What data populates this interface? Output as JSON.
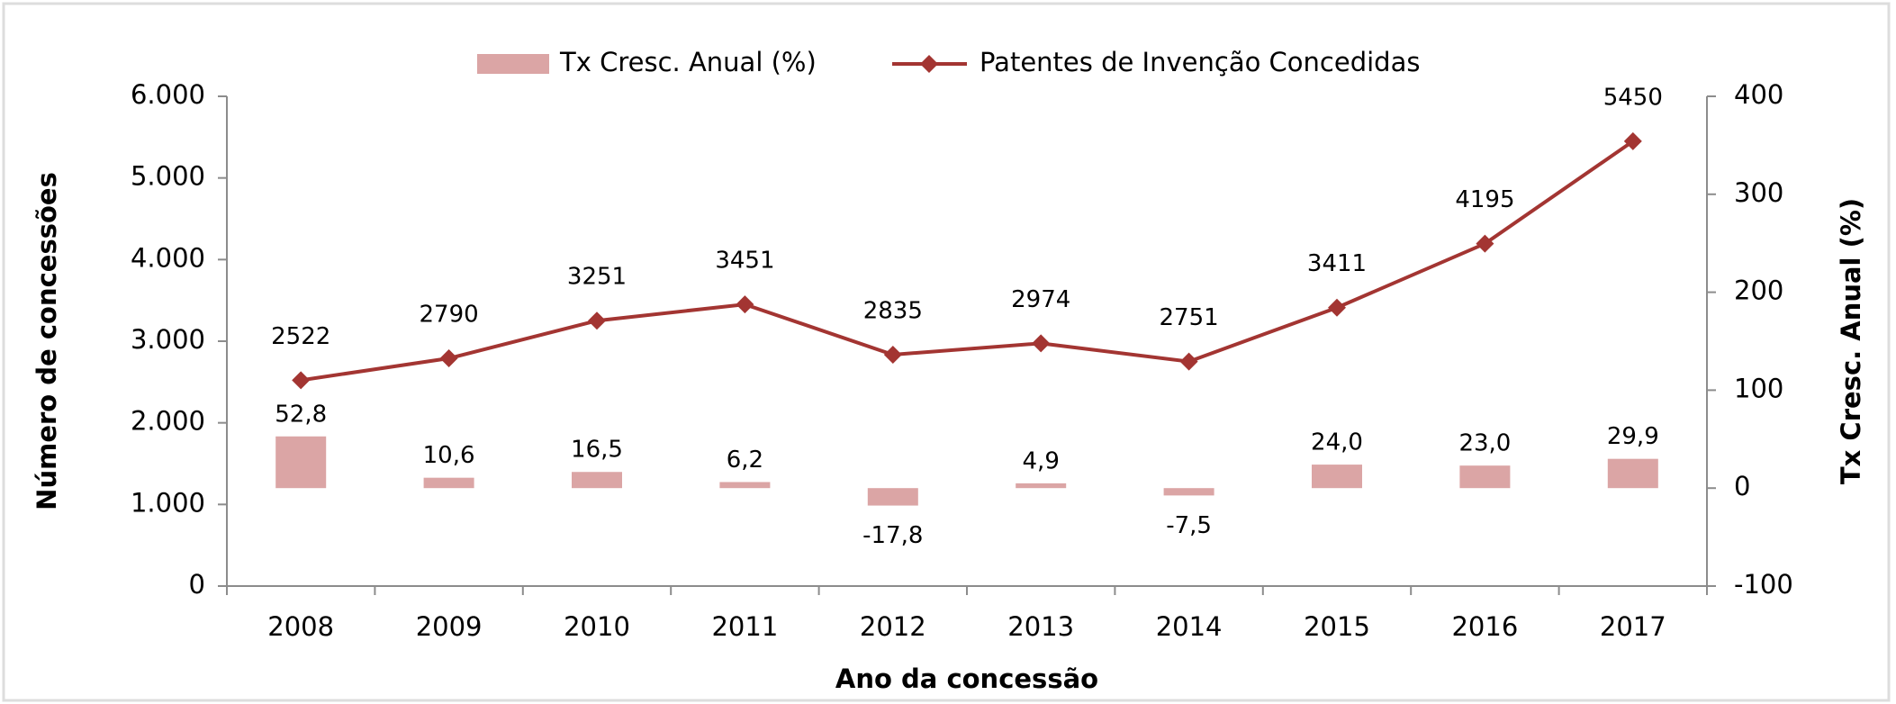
{
  "chart_data": {
    "type": "combo",
    "x_label": "Ano da concessão",
    "y_label": "Número de concessões",
    "y2_label": "Tx Cresc. Anual (%)",
    "categories": [
      "2008",
      "2009",
      "2010",
      "2011",
      "2012",
      "2013",
      "2014",
      "2015",
      "2016",
      "2017"
    ],
    "series": [
      {
        "name": "Tx Cresc. Anual (%)",
        "type": "bar",
        "axis": "y2",
        "color": "#dba5a5",
        "values": [
          52.8,
          10.6,
          16.5,
          6.2,
          -17.8,
          4.9,
          -7.5,
          24.0,
          23.0,
          29.9
        ],
        "value_labels": [
          "52,8",
          "10,6",
          "16,5",
          "6,2",
          "-17,8",
          "4,9",
          "-7,5",
          "24,0",
          "23,0",
          "29,9"
        ]
      },
      {
        "name": "Patentes de Invenção Concedidas",
        "type": "line",
        "axis": "y",
        "color": "#a33532",
        "values": [
          2522,
          2790,
          3251,
          3451,
          2835,
          2974,
          2751,
          3411,
          4195,
          5450
        ]
      }
    ],
    "ylim": [
      0,
      6000
    ],
    "yticks": [
      0,
      {
        "value": 1000,
        "label": "1.000"
      },
      {
        "value": 2000,
        "label": "2.000"
      },
      {
        "value": 3000,
        "label": "3.000"
      },
      {
        "value": 4000,
        "label": "4.000"
      },
      {
        "value": 5000,
        "label": "5.000"
      },
      {
        "value": 6000,
        "label": "6.000"
      }
    ],
    "y2lim": [
      -100,
      400
    ],
    "y2ticks": [
      -100,
      0,
      100,
      200,
      300,
      400
    ],
    "legend": "top"
  }
}
